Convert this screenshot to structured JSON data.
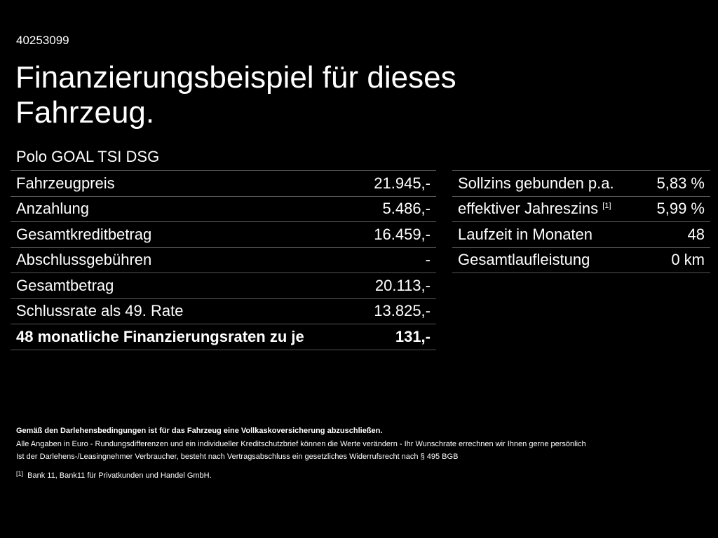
{
  "id": "40253099",
  "title": "Finanzierungsbeispiel für dieses Fahrzeug.",
  "model": "Polo GOAL TSI DSG",
  "left_rows": [
    {
      "label": "Fahrzeugpreis",
      "value": "21.945,-"
    },
    {
      "label": "Anzahlung",
      "value": "5.486,-"
    },
    {
      "label": "Gesamtkreditbetrag",
      "value": "16.459,-"
    },
    {
      "label": "Abschlussgebühren",
      "value": "-"
    },
    {
      "label": "Gesamtbetrag",
      "value": "20.113,-"
    },
    {
      "label": "Schlussrate als 49. Rate",
      "value": "13.825,-"
    },
    {
      "label": "48 monatliche Finanzierungsraten zu je",
      "value": "131,-"
    }
  ],
  "right_rows": [
    {
      "label": "Sollzins gebunden p.a.",
      "value": "5,83 %"
    },
    {
      "label": "effektiver Jahreszins",
      "sup": "[1]",
      "value": "5,99 %"
    },
    {
      "label": "Laufzeit in Monaten",
      "value": "48"
    },
    {
      "label": "Gesamtlaufleistung",
      "value": "0 km"
    }
  ],
  "notes": {
    "bold": "Gemäß den Darlehensbedingungen ist für das Fahrzeug eine Vollkaskoversicherung abzuschließen.",
    "line1": "Alle Angaben in Euro - Rundungsdifferenzen und ein individueller Kreditschutzbrief können die Werte verändern - Ihr Wunschrate errechnen wir Ihnen gerne persönlich",
    "line2": "Ist der Darlehens-/Leasingnehmer Verbraucher, besteht nach Vertragsabschluss ein gesetzliches Widerrufsrecht nach § 495 BGB",
    "footnote_mark": "[1]",
    "footnote": "Bank 11, Bank11 für Privatkunden und Handel GmbH."
  }
}
